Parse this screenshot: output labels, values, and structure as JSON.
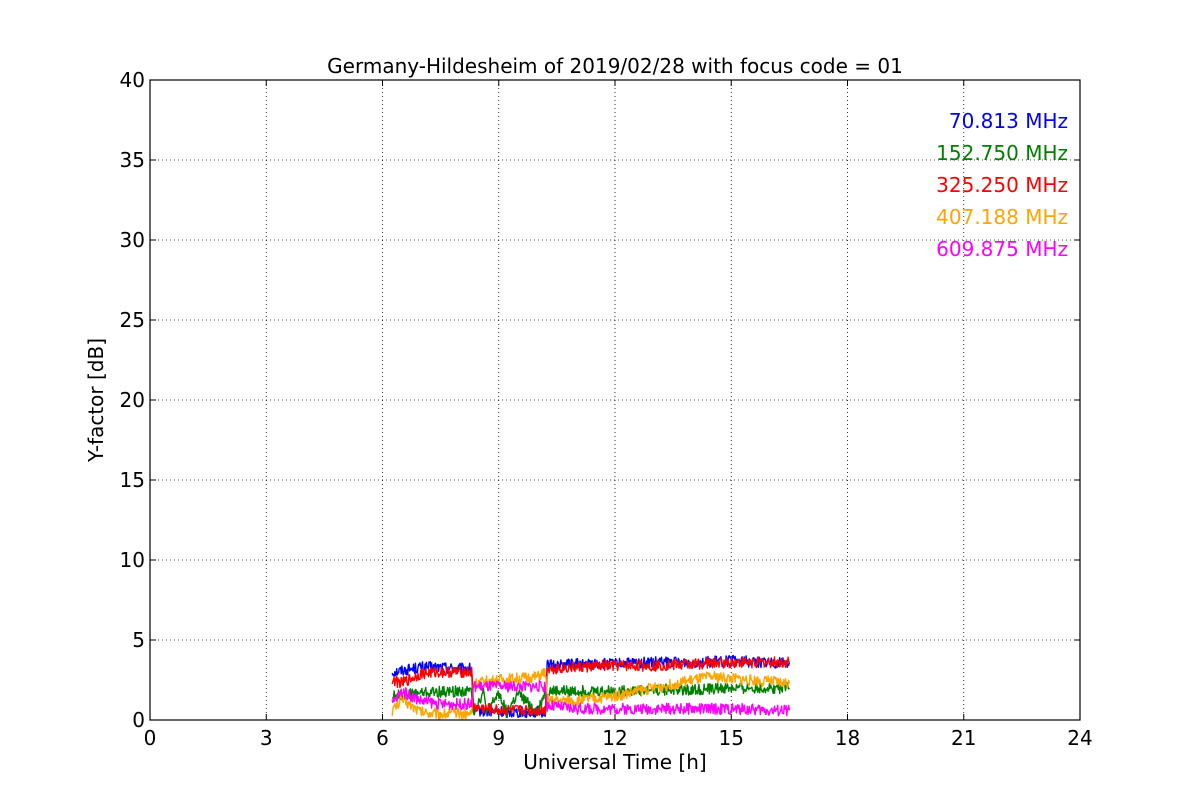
{
  "chart_data": {
    "type": "line",
    "title": "Germany-Hildesheim of 2019/02/28 with focus code = 01",
    "xlabel": "Universal Time [h]",
    "ylabel": "Y-factor [dB]",
    "xlim": [
      0,
      24
    ],
    "ylim": [
      0,
      40
    ],
    "xticks": [
      0,
      3,
      6,
      9,
      12,
      15,
      18,
      21,
      24
    ],
    "yticks": [
      0,
      5,
      10,
      15,
      20,
      25,
      30,
      35,
      40
    ],
    "grid": true,
    "legend_position": "top-right",
    "series": [
      {
        "name": "70.813 MHz",
        "color": "#0000ff",
        "x": [
          6.25,
          6.5,
          7.0,
          7.5,
          8.0,
          8.3,
          8.35,
          9.0,
          9.5,
          10.2,
          10.25,
          11.0,
          12.0,
          13.0,
          14.0,
          15.0,
          16.0,
          16.5
        ],
        "y": [
          3.0,
          3.1,
          3.3,
          3.3,
          3.2,
          3.2,
          0.6,
          0.5,
          0.5,
          0.5,
          3.4,
          3.5,
          3.5,
          3.6,
          3.6,
          3.7,
          3.6,
          3.6
        ]
      },
      {
        "name": "152.750 MHz",
        "color": "#008000",
        "x": [
          6.25,
          7.0,
          8.0,
          8.3,
          8.35,
          8.6,
          8.7,
          9.0,
          9.2,
          9.5,
          10.0,
          10.2,
          11.0,
          12.0,
          13.0,
          14.0,
          15.0,
          16.0,
          16.5
        ],
        "y": [
          1.5,
          1.7,
          1.8,
          1.8,
          0.5,
          1.7,
          0.5,
          1.7,
          0.5,
          1.6,
          0.5,
          1.8,
          1.8,
          1.8,
          1.9,
          1.9,
          2.0,
          2.0,
          2.0
        ]
      },
      {
        "name": "325.250 MHz",
        "color": "#ff0000",
        "x": [
          6.25,
          6.5,
          7.0,
          7.5,
          8.0,
          8.3,
          8.35,
          9.0,
          9.5,
          10.2,
          10.25,
          11.0,
          12.0,
          13.0,
          14.0,
          15.0,
          16.0,
          16.5
        ],
        "y": [
          2.5,
          2.3,
          2.9,
          3.0,
          3.0,
          3.0,
          0.8,
          0.6,
          0.6,
          0.6,
          3.2,
          3.3,
          3.4,
          3.4,
          3.5,
          3.6,
          3.6,
          3.6
        ]
      },
      {
        "name": "407.188 MHz",
        "color": "#ffa500",
        "x": [
          6.25,
          6.5,
          7.0,
          7.5,
          8.0,
          8.3,
          8.35,
          9.0,
          9.5,
          10.0,
          10.2,
          10.25,
          11.0,
          12.0,
          13.0,
          14.0,
          14.5,
          15.0,
          16.0,
          16.5
        ],
        "y": [
          0.6,
          1.3,
          0.5,
          0.4,
          0.4,
          0.4,
          2.3,
          2.5,
          2.6,
          2.7,
          3.0,
          1.2,
          1.2,
          1.5,
          2.0,
          2.5,
          2.7,
          2.6,
          2.4,
          2.3
        ]
      },
      {
        "name": "609.875 MHz",
        "color": "#ff00ff",
        "x": [
          6.25,
          6.5,
          7.0,
          7.5,
          8.0,
          8.3,
          8.35,
          9.0,
          9.5,
          10.0,
          10.2,
          10.25,
          11.0,
          12.0,
          13.0,
          14.0,
          15.0,
          16.0,
          16.5
        ],
        "y": [
          1.0,
          1.8,
          1.2,
          1.0,
          1.0,
          1.0,
          2.1,
          2.1,
          2.1,
          2.1,
          2.1,
          0.9,
          0.7,
          0.7,
          0.7,
          0.7,
          0.7,
          0.6,
          0.6
        ]
      }
    ]
  }
}
